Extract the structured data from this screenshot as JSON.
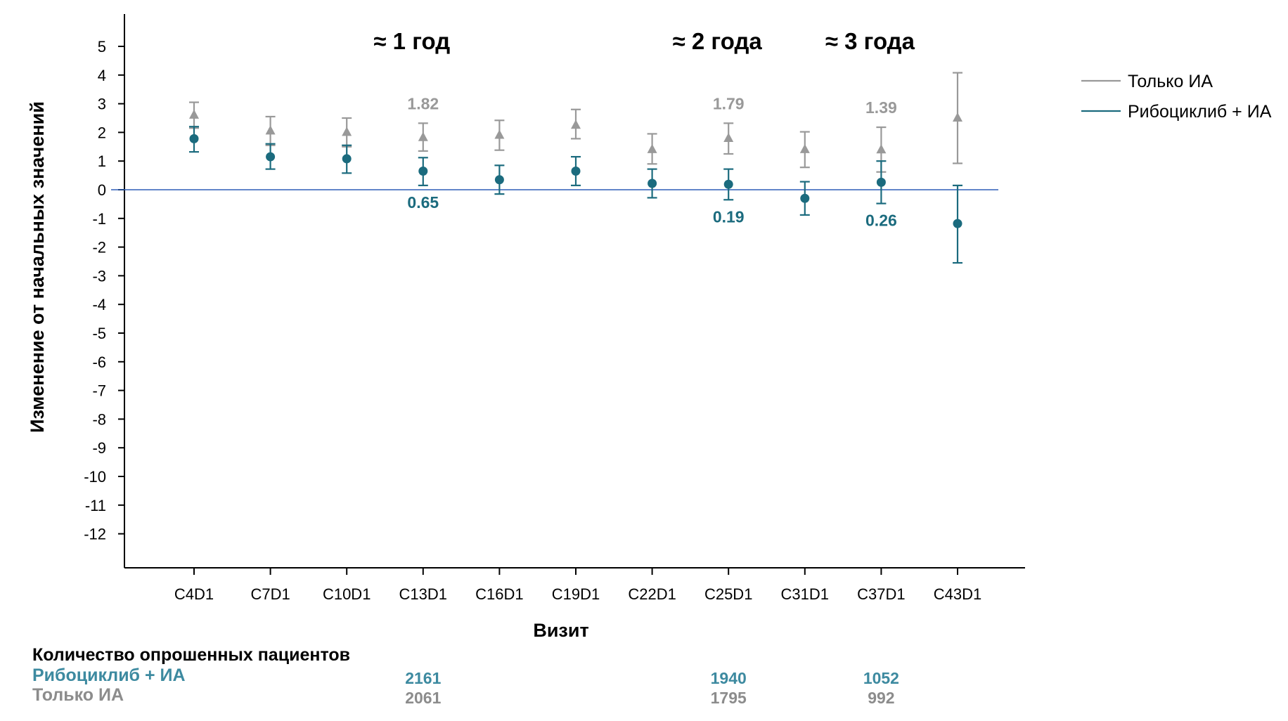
{
  "chart_data": {
    "type": "scatter",
    "title": "",
    "xlabel": "Визит",
    "ylabel": "Изменение от начальных значений",
    "ylim": [
      -12,
      5
    ],
    "yticks": [
      5,
      4,
      3,
      2,
      1,
      0,
      -1,
      -2,
      -3,
      -4,
      -5,
      -6,
      -7,
      -8,
      -9,
      -10,
      -11,
      -12
    ],
    "categories": [
      "C4D1",
      "C7D1",
      "C10D1",
      "C13D1",
      "C16D1",
      "C19D1",
      "C22D1",
      "C25D1",
      "C31D1",
      "C37D1",
      "C43D1"
    ],
    "reference_line": 0,
    "grid": false,
    "legend_position": "right",
    "series": [
      {
        "name": "Только ИА",
        "color": "#999999",
        "marker": "triangle",
        "values": [
          2.6,
          2.05,
          2.0,
          1.82,
          1.9,
          2.25,
          1.4,
          1.79,
          1.4,
          1.39,
          2.5
        ],
        "lower": [
          2.15,
          1.55,
          1.5,
          1.35,
          1.38,
          1.78,
          0.9,
          1.25,
          0.78,
          0.62,
          0.92
        ],
        "upper": [
          3.05,
          2.55,
          2.5,
          2.32,
          2.42,
          2.8,
          1.95,
          2.32,
          2.02,
          2.18,
          4.08
        ]
      },
      {
        "name": "Рибоциклиб + ИА",
        "color": "#1b6b7e",
        "marker": "circle",
        "values": [
          1.78,
          1.15,
          1.08,
          0.65,
          0.35,
          0.65,
          0.22,
          0.19,
          -0.3,
          0.26,
          -1.18
        ],
        "lower": [
          1.32,
          0.72,
          0.58,
          0.15,
          -0.15,
          0.15,
          -0.28,
          -0.35,
          -0.88,
          -0.48,
          -2.55
        ],
        "upper": [
          2.2,
          1.6,
          1.55,
          1.12,
          0.85,
          1.15,
          0.72,
          0.72,
          0.28,
          1.0,
          0.15
        ]
      }
    ],
    "annotations": [
      {
        "text": "≈ 1 год",
        "category": "C13D1",
        "kind": "period"
      },
      {
        "text": "≈ 2 года",
        "category": "C25D1",
        "kind": "period"
      },
      {
        "text": "≈ 3 года",
        "category": "C37D1",
        "kind": "period"
      },
      {
        "text": "1.82",
        "category": "C13D1",
        "series": 0
      },
      {
        "text": "1.79",
        "category": "C25D1",
        "series": 0
      },
      {
        "text": "1.39",
        "category": "C37D1",
        "series": 0
      },
      {
        "text": "0.65",
        "category": "C13D1",
        "series": 1
      },
      {
        "text": "0.19",
        "category": "C25D1",
        "series": 1
      },
      {
        "text": "0.26",
        "category": "C37D1",
        "series": 1
      }
    ]
  },
  "patients_table": {
    "title": "Количество опрошенных пациентов",
    "rows": [
      {
        "label": "Рибоциклиб + ИА",
        "color": "#3d8aa0",
        "counts": [
          {
            "category": "C13D1",
            "value": "2161"
          },
          {
            "category": "C25D1",
            "value": "1940"
          },
          {
            "category": "C37D1",
            "value": "1052"
          }
        ]
      },
      {
        "label": "Только ИА",
        "color": "#8c8c8c",
        "counts": [
          {
            "category": "C13D1",
            "value": "2061"
          },
          {
            "category": "C25D1",
            "value": "1795"
          },
          {
            "category": "C37D1",
            "value": "992"
          }
        ]
      }
    ]
  }
}
